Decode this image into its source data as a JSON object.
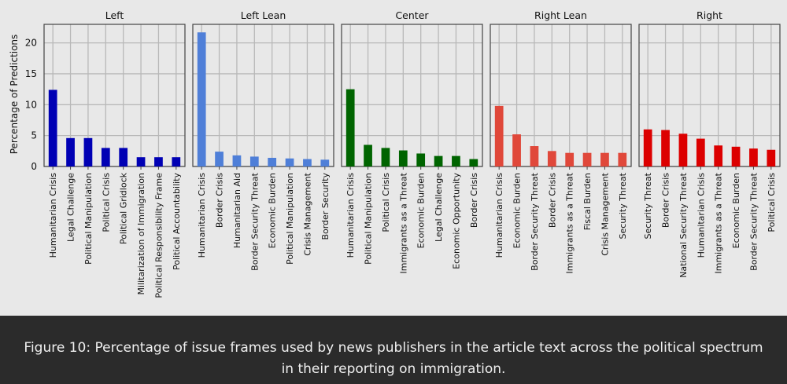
{
  "figure": {
    "caption": "Figure 10: Percentage of issue frames used by news publishers in the article text across the political spectrum in their reporting on immigration."
  },
  "chart_data": {
    "type": "bar",
    "ylabel": "Percentage of Predictions",
    "ylim": [
      0,
      23
    ],
    "yticks": [
      0,
      5,
      10,
      15,
      20
    ],
    "grid": true,
    "shared_y": true,
    "panels": [
      {
        "title": "Left",
        "color": "#0000b4",
        "categories": [
          "Humanitarian Crisis",
          "Legal Challenge",
          "Political Manipulation",
          "Political Crisis",
          "Political Gridlock",
          "Militarization of Immigration",
          "Political Responsibility Frame",
          "Political Accountability"
        ],
        "values": [
          12.4,
          4.6,
          4.6,
          3.0,
          3.0,
          1.5,
          1.5,
          1.5
        ]
      },
      {
        "title": "Left Lean",
        "color": "#4f7fd8",
        "categories": [
          "Humanitarian Crisis",
          "Border Crisis",
          "Humanitarian Aid",
          "Border Security Threat",
          "Economic Burden",
          "Political Manipulation",
          "Crisis Management",
          "Border Security"
        ],
        "values": [
          21.7,
          2.4,
          1.8,
          1.6,
          1.4,
          1.3,
          1.2,
          1.1
        ]
      },
      {
        "title": "Center",
        "color": "#006400",
        "categories": [
          "Humanitarian Crisis",
          "Political Manipulation",
          "Political Crisis",
          "Immigrants as a Threat",
          "Economic Burden",
          "Legal Challenge",
          "Economic Opportunity",
          "Border Crisis"
        ],
        "values": [
          12.5,
          3.5,
          3.0,
          2.6,
          2.1,
          1.7,
          1.7,
          1.2
        ]
      },
      {
        "title": "Right Lean",
        "color": "#e0483a",
        "categories": [
          "Humanitarian Crisis",
          "Economic Burden",
          "Border Security Threat",
          "Border Crisis",
          "Immigrants as a Threat",
          "Fiscal Burden",
          "Crisis Management",
          "Security Threat"
        ],
        "values": [
          9.8,
          5.2,
          3.3,
          2.5,
          2.2,
          2.2,
          2.2,
          2.2
        ]
      },
      {
        "title": "Right",
        "color": "#dc0000",
        "categories": [
          "Security Threat",
          "Border Crisis",
          "National Security Threat",
          "Humanitarian Crisis",
          "Immigrants as a Threat",
          "Economic Burden",
          "Border Security Threat",
          "Political Crisis"
        ],
        "values": [
          6.0,
          5.9,
          5.3,
          4.5,
          3.4,
          3.2,
          2.9,
          2.7
        ]
      }
    ]
  }
}
